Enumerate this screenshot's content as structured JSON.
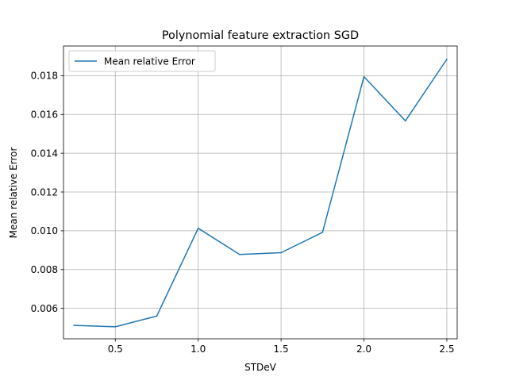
{
  "chart_data": {
    "type": "line",
    "title": "Polynomial feature extraction SGD",
    "xlabel": "STDeV",
    "ylabel": "Mean relative Error",
    "grid": true,
    "legend_position": "top-left",
    "xlim": [
      0.1875,
      2.5625
    ],
    "ylim": [
      0.00443,
      0.01953
    ],
    "x_ticks": [
      0.5,
      1.0,
      1.5,
      2.0,
      2.5
    ],
    "x_tick_labels": [
      "0.5",
      "1.0",
      "1.5",
      "2.0",
      "2.5"
    ],
    "y_ticks": [
      0.006,
      0.008,
      0.01,
      0.012,
      0.014,
      0.016,
      0.018
    ],
    "y_tick_labels": [
      "0.006",
      "0.008",
      "0.010",
      "0.012",
      "0.014",
      "0.016",
      "0.018"
    ],
    "series": [
      {
        "name": "Mean relative Error",
        "color": "#1f77b4",
        "x": [
          0.25,
          0.5,
          0.75,
          1.0,
          1.25,
          1.5,
          1.75,
          2.0,
          2.25,
          2.5
        ],
        "y": [
          0.00512,
          0.00505,
          0.0056,
          0.01013,
          0.00878,
          0.00887,
          0.00992,
          0.01795,
          0.01567,
          0.01885
        ]
      }
    ]
  }
}
